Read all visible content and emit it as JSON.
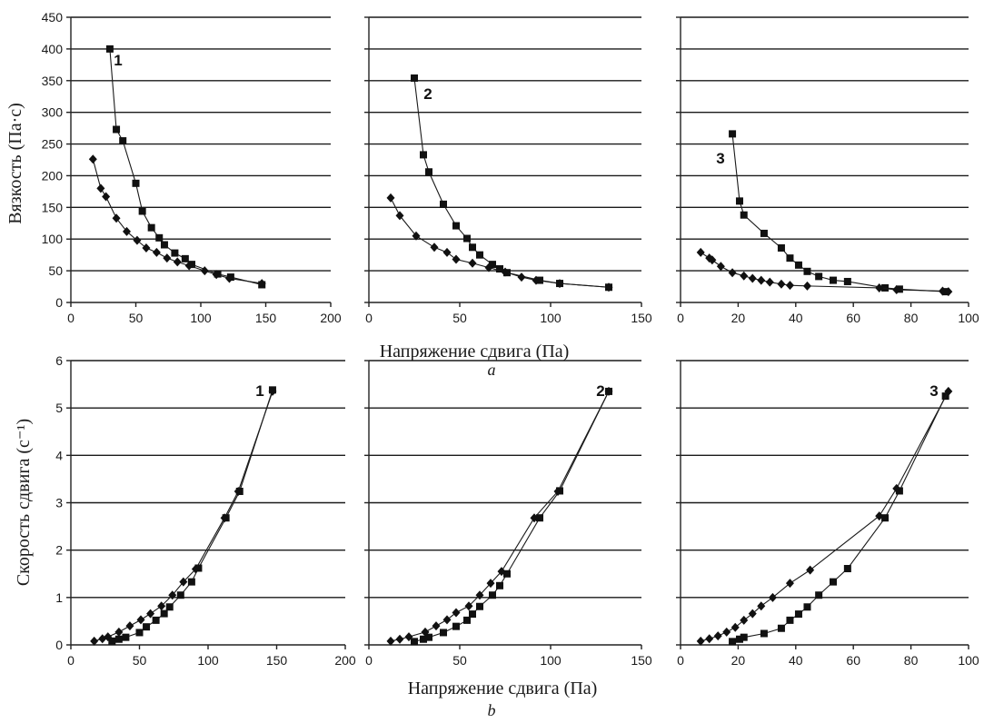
{
  "row_labels": {
    "top": "a",
    "bottom": "b"
  },
  "axis_titles": {
    "top_y": "Вязкость (Па·с)",
    "top_x": "Напряжение сдвига (Па)",
    "bottom_y": "Скорость сдвига (с⁻¹)",
    "bottom_x": "Напряжение сдвига (Па)"
  },
  "chart_data": [
    {
      "type": "scatter",
      "panel": "a",
      "curve_label": "1",
      "xlim": [
        0,
        200
      ],
      "xticks": [
        0,
        50,
        100,
        150,
        200
      ],
      "ylim": [
        0,
        450
      ],
      "yticks": [
        0,
        50,
        100,
        150,
        200,
        250,
        300,
        350,
        400,
        450
      ],
      "grid": "horizontal",
      "series": [
        {
          "marker": "square",
          "x": [
            30,
            35,
            40,
            50,
            55,
            62,
            68,
            72,
            80,
            88,
            93,
            113,
            123,
            147
          ],
          "y": [
            400,
            273,
            255,
            188,
            144,
            118,
            102,
            91,
            78,
            69,
            60,
            45,
            40,
            28
          ]
        },
        {
          "marker": "diamond",
          "x": [
            17,
            23,
            27,
            35,
            43,
            51,
            58,
            66,
            74,
            82,
            91,
            103,
            112,
            122,
            147
          ],
          "y": [
            226,
            180,
            167,
            133,
            112,
            98,
            86,
            79,
            70,
            64,
            58,
            50,
            44,
            38,
            30
          ]
        }
      ]
    },
    {
      "type": "scatter",
      "panel": "a",
      "curve_label": "2",
      "xlim": [
        0,
        150
      ],
      "xticks": [
        0,
        50,
        100,
        150
      ],
      "ylim": [
        0,
        450
      ],
      "grid": "horizontal",
      "series": [
        {
          "marker": "square",
          "x": [
            25,
            30,
            33,
            41,
            48,
            54,
            57,
            61,
            68,
            72,
            76,
            94,
            105,
            132
          ],
          "y": [
            354,
            233,
            206,
            155,
            121,
            101,
            87,
            75,
            60,
            53,
            47,
            35,
            30,
            24
          ]
        },
        {
          "marker": "diamond",
          "x": [
            12,
            17,
            26,
            36,
            43,
            48,
            57,
            66,
            75,
            84,
            92,
            105,
            132
          ],
          "y": [
            165,
            137,
            105,
            87,
            79,
            68,
            62,
            55,
            48,
            40,
            35,
            30,
            24
          ]
        }
      ]
    },
    {
      "type": "scatter",
      "panel": "a",
      "curve_label": "3",
      "xlim": [
        0,
        100
      ],
      "xticks": [
        0,
        20,
        40,
        60,
        80,
        100
      ],
      "ylim": [
        0,
        450
      ],
      "grid": "horizontal",
      "series": [
        {
          "marker": "square",
          "x": [
            18,
            20.5,
            22,
            29,
            35,
            38,
            41,
            44,
            48,
            53,
            58,
            71,
            76,
            92
          ],
          "y": [
            266,
            160,
            138,
            109,
            86,
            70,
            59,
            49,
            41,
            35,
            33,
            23,
            21,
            17
          ]
        },
        {
          "marker": "diamond",
          "x": [
            7,
            10,
            11,
            14,
            18,
            22,
            25,
            28,
            31,
            35,
            38,
            44,
            69,
            75,
            91,
            93
          ],
          "y": [
            79,
            70,
            67,
            57,
            47,
            42,
            38,
            35,
            32,
            29,
            27,
            26,
            23,
            20,
            18,
            17
          ]
        }
      ]
    },
    {
      "type": "scatter",
      "panel": "b",
      "curve_label": "1",
      "xlim": [
        0,
        200
      ],
      "xticks": [
        0,
        50,
        100,
        150,
        200
      ],
      "ylim": [
        0,
        6
      ],
      "yticks": [
        0,
        1,
        2,
        3,
        4,
        5,
        6
      ],
      "grid": "horizontal",
      "series": [
        {
          "marker": "square",
          "x": [
            30,
            35,
            40,
            50,
            55,
            62,
            68,
            72,
            80,
            88,
            93,
            113,
            123,
            147
          ],
          "y": [
            0.08,
            0.12,
            0.16,
            0.26,
            0.38,
            0.52,
            0.66,
            0.8,
            1.05,
            1.33,
            1.62,
            2.68,
            3.24,
            5.38
          ]
        },
        {
          "marker": "diamond",
          "x": [
            17,
            23,
            27,
            35,
            43,
            51,
            58,
            66,
            74,
            82,
            91,
            112,
            122,
            147
          ],
          "y": [
            0.08,
            0.13,
            0.17,
            0.27,
            0.4,
            0.53,
            0.66,
            0.82,
            1.05,
            1.33,
            1.6,
            2.68,
            3.24,
            5.35
          ]
        }
      ]
    },
    {
      "type": "scatter",
      "panel": "b",
      "curve_label": "2",
      "xlim": [
        0,
        150
      ],
      "xticks": [
        0,
        50,
        100,
        150
      ],
      "ylim": [
        0,
        6
      ],
      "grid": "horizontal",
      "series": [
        {
          "marker": "square",
          "x": [
            25,
            30,
            33,
            41,
            48,
            54,
            57,
            61,
            68,
            72,
            76,
            94,
            105,
            132
          ],
          "y": [
            0.07,
            0.12,
            0.16,
            0.26,
            0.39,
            0.52,
            0.65,
            0.81,
            1.05,
            1.25,
            1.5,
            2.68,
            3.25,
            5.35
          ]
        },
        {
          "marker": "diamond",
          "x": [
            12,
            17,
            22,
            31,
            37,
            43,
            48,
            55,
            61,
            67,
            73,
            91,
            104,
            132
          ],
          "y": [
            0.08,
            0.12,
            0.17,
            0.27,
            0.4,
            0.53,
            0.68,
            0.82,
            1.05,
            1.3,
            1.55,
            2.68,
            3.24,
            5.35
          ]
        }
      ]
    },
    {
      "type": "scatter",
      "panel": "b",
      "curve_label": "3",
      "xlim": [
        0,
        100
      ],
      "xticks": [
        0,
        20,
        40,
        60,
        80,
        100
      ],
      "ylim": [
        0,
        6
      ],
      "grid": "horizontal",
      "series": [
        {
          "marker": "square",
          "x": [
            18,
            20.5,
            22,
            29,
            35,
            38,
            41,
            44,
            48,
            53,
            58,
            71,
            76,
            92
          ],
          "y": [
            0.07,
            0.12,
            0.16,
            0.24,
            0.35,
            0.52,
            0.65,
            0.8,
            1.05,
            1.33,
            1.61,
            2.68,
            3.25,
            5.25
          ]
        },
        {
          "marker": "diamond",
          "x": [
            7,
            10,
            13,
            16,
            19,
            22,
            25,
            28,
            32,
            38,
            45,
            69,
            75,
            93
          ],
          "y": [
            0.08,
            0.13,
            0.19,
            0.27,
            0.37,
            0.52,
            0.66,
            0.82,
            1.0,
            1.3,
            1.58,
            2.72,
            3.3,
            5.35
          ]
        }
      ]
    }
  ]
}
